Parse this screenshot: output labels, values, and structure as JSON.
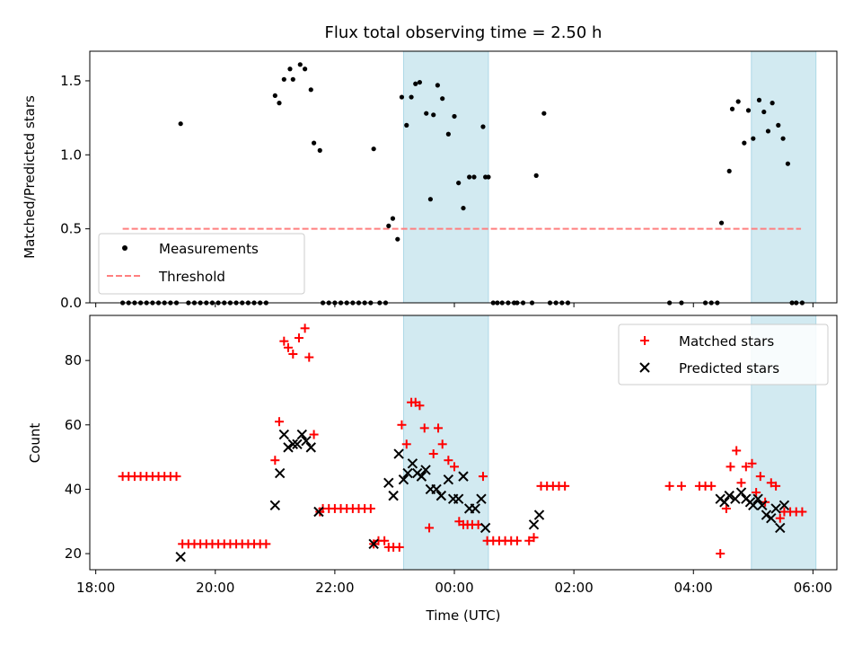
{
  "chart_data": [
    {
      "type": "scatter",
      "title": "Flux total observing time = 2.50 h",
      "ylabel": "Matched/Predicted stars",
      "xlabel": "",
      "x_unit": "hours UTC since 18:00 (day rollover at 24)",
      "xlim": [
        17.9,
        30.4
      ],
      "ylim": [
        0.0,
        1.7
      ],
      "x_ticks": [
        18,
        20,
        22,
        24,
        26,
        28,
        30
      ],
      "y_ticks": [
        0.0,
        0.5,
        1.0,
        1.5
      ],
      "y_tick_labels": [
        "0.0",
        "0.5",
        "1.0",
        "1.5"
      ],
      "threshold": 0.5,
      "threshold_range": [
        18.45,
        29.8
      ],
      "shaded_ranges": [
        [
          23.15,
          24.57
        ],
        [
          28.97,
          30.05
        ]
      ],
      "legend_position": "lower-left",
      "legend": [
        "Measurements",
        "Threshold"
      ],
      "series": [
        {
          "name": "Measurements",
          "points": [
            [
              18.45,
              0
            ],
            [
              18.55,
              0
            ],
            [
              18.65,
              0
            ],
            [
              18.75,
              0
            ],
            [
              18.85,
              0
            ],
            [
              18.95,
              0
            ],
            [
              19.05,
              0
            ],
            [
              19.15,
              0
            ],
            [
              19.25,
              0
            ],
            [
              19.35,
              0
            ],
            [
              19.42,
              1.21
            ],
            [
              19.55,
              0
            ],
            [
              19.65,
              0
            ],
            [
              19.75,
              0
            ],
            [
              19.85,
              0
            ],
            [
              19.95,
              0
            ],
            [
              20.05,
              0
            ],
            [
              20.15,
              0
            ],
            [
              20.25,
              0
            ],
            [
              20.35,
              0
            ],
            [
              20.45,
              0
            ],
            [
              20.55,
              0
            ],
            [
              20.65,
              0
            ],
            [
              20.75,
              0
            ],
            [
              20.85,
              0
            ],
            [
              21.0,
              1.4
            ],
            [
              21.07,
              1.35
            ],
            [
              21.15,
              1.51
            ],
            [
              21.25,
              1.58
            ],
            [
              21.3,
              1.51
            ],
            [
              21.42,
              1.61
            ],
            [
              21.5,
              1.58
            ],
            [
              21.6,
              1.44
            ],
            [
              21.65,
              1.08
            ],
            [
              21.75,
              1.03
            ],
            [
              21.8,
              0
            ],
            [
              21.9,
              0
            ],
            [
              22.0,
              0
            ],
            [
              22.1,
              0
            ],
            [
              22.2,
              0
            ],
            [
              22.3,
              0
            ],
            [
              22.4,
              0
            ],
            [
              22.5,
              0
            ],
            [
              22.6,
              0
            ],
            [
              22.65,
              1.04
            ],
            [
              22.75,
              0
            ],
            [
              22.85,
              0
            ],
            [
              22.9,
              0.52
            ],
            [
              22.97,
              0.57
            ],
            [
              23.05,
              0.43
            ],
            [
              23.12,
              1.39
            ],
            [
              23.2,
              1.2
            ],
            [
              23.28,
              1.39
            ],
            [
              23.35,
              1.48
            ],
            [
              23.42,
              1.49
            ],
            [
              23.53,
              1.28
            ],
            [
              23.6,
              0.7
            ],
            [
              23.65,
              1.27
            ],
            [
              23.72,
              1.47
            ],
            [
              23.8,
              1.38
            ],
            [
              23.9,
              1.14
            ],
            [
              24.0,
              1.26
            ],
            [
              24.07,
              0.81
            ],
            [
              24.15,
              0.64
            ],
            [
              24.25,
              0.85
            ],
            [
              24.33,
              0.85
            ],
            [
              24.48,
              1.19
            ],
            [
              24.52,
              0.85
            ],
            [
              24.57,
              0.85
            ],
            [
              24.65,
              0
            ],
            [
              24.72,
              0
            ],
            [
              24.8,
              0
            ],
            [
              24.9,
              0
            ],
            [
              25.0,
              0
            ],
            [
              25.05,
              0
            ],
            [
              25.15,
              0
            ],
            [
              25.3,
              0
            ],
            [
              25.37,
              0.86
            ],
            [
              25.5,
              1.28
            ],
            [
              25.6,
              0
            ],
            [
              25.7,
              0
            ],
            [
              25.8,
              0
            ],
            [
              25.9,
              0
            ],
            [
              27.6,
              0
            ],
            [
              27.8,
              0
            ],
            [
              28.2,
              0
            ],
            [
              28.3,
              0
            ],
            [
              28.4,
              0
            ],
            [
              28.47,
              0.54
            ],
            [
              28.6,
              0.89
            ],
            [
              28.65,
              1.31
            ],
            [
              28.75,
              1.36
            ],
            [
              28.85,
              1.08
            ],
            [
              28.92,
              1.3
            ],
            [
              29.0,
              1.11
            ],
            [
              29.1,
              1.37
            ],
            [
              29.18,
              1.29
            ],
            [
              29.25,
              1.16
            ],
            [
              29.32,
              1.35
            ],
            [
              29.42,
              1.2
            ],
            [
              29.5,
              1.11
            ],
            [
              29.58,
              0.94
            ],
            [
              29.65,
              0
            ],
            [
              29.72,
              0
            ],
            [
              29.82,
              0
            ]
          ]
        }
      ]
    },
    {
      "type": "scatter",
      "title": "",
      "ylabel": "Count",
      "xlabel": "Time (UTC)",
      "xlim": [
        17.9,
        30.4
      ],
      "ylim": [
        15,
        94
      ],
      "x_ticks": [
        18,
        20,
        22,
        24,
        26,
        28,
        30
      ],
      "x_tick_labels": [
        "18:00",
        "20:00",
        "22:00",
        "00:00",
        "02:00",
        "04:00",
        "06:00"
      ],
      "y_ticks": [
        20,
        40,
        60,
        80
      ],
      "y_tick_labels": [
        "20",
        "40",
        "60",
        "80"
      ],
      "shaded_ranges": [
        [
          23.15,
          24.57
        ],
        [
          28.97,
          30.05
        ]
      ],
      "legend_position": "top-right",
      "legend": [
        "Matched stars",
        "Predicted stars"
      ],
      "series": [
        {
          "name": "Matched stars",
          "points": [
            [
              18.45,
              44
            ],
            [
              18.55,
              44
            ],
            [
              18.65,
              44
            ],
            [
              18.75,
              44
            ],
            [
              18.85,
              44
            ],
            [
              18.95,
              44
            ],
            [
              19.05,
              44
            ],
            [
              19.15,
              44
            ],
            [
              19.25,
              44
            ],
            [
              19.35,
              44
            ],
            [
              19.45,
              23
            ],
            [
              19.55,
              23
            ],
            [
              19.65,
              23
            ],
            [
              19.75,
              23
            ],
            [
              19.85,
              23
            ],
            [
              19.95,
              23
            ],
            [
              20.05,
              23
            ],
            [
              20.15,
              23
            ],
            [
              20.25,
              23
            ],
            [
              20.35,
              23
            ],
            [
              20.45,
              23
            ],
            [
              20.55,
              23
            ],
            [
              20.65,
              23
            ],
            [
              20.75,
              23
            ],
            [
              20.85,
              23
            ],
            [
              21.0,
              49
            ],
            [
              21.07,
              61
            ],
            [
              21.15,
              86
            ],
            [
              21.22,
              84
            ],
            [
              21.3,
              82
            ],
            [
              21.4,
              87
            ],
            [
              21.5,
              90
            ],
            [
              21.57,
              81
            ],
            [
              21.65,
              57
            ],
            [
              21.75,
              33
            ],
            [
              21.8,
              34
            ],
            [
              21.9,
              34
            ],
            [
              22.0,
              34
            ],
            [
              22.1,
              34
            ],
            [
              22.2,
              34
            ],
            [
              22.3,
              34
            ],
            [
              22.4,
              34
            ],
            [
              22.5,
              34
            ],
            [
              22.6,
              34
            ],
            [
              22.65,
              23
            ],
            [
              22.73,
              24
            ],
            [
              22.83,
              24
            ],
            [
              22.9,
              22
            ],
            [
              22.98,
              22
            ],
            [
              23.08,
              22
            ],
            [
              23.12,
              60
            ],
            [
              23.2,
              54
            ],
            [
              23.28,
              67
            ],
            [
              23.35,
              67
            ],
            [
              23.42,
              66
            ],
            [
              23.5,
              59
            ],
            [
              23.58,
              28
            ],
            [
              23.65,
              51
            ],
            [
              23.73,
              59
            ],
            [
              23.8,
              54
            ],
            [
              23.9,
              49
            ],
            [
              24.0,
              47
            ],
            [
              24.08,
              30
            ],
            [
              24.15,
              29
            ],
            [
              24.22,
              29
            ],
            [
              24.3,
              29
            ],
            [
              24.4,
              29
            ],
            [
              24.48,
              44
            ],
            [
              24.55,
              24
            ],
            [
              24.65,
              24
            ],
            [
              24.75,
              24
            ],
            [
              24.85,
              24
            ],
            [
              24.95,
              24
            ],
            [
              25.05,
              24
            ],
            [
              25.25,
              24
            ],
            [
              25.33,
              25
            ],
            [
              25.45,
              41
            ],
            [
              25.55,
              41
            ],
            [
              25.65,
              41
            ],
            [
              25.75,
              41
            ],
            [
              25.85,
              41
            ],
            [
              27.6,
              41
            ],
            [
              27.8,
              41
            ],
            [
              28.1,
              41
            ],
            [
              28.2,
              41
            ],
            [
              28.3,
              41
            ],
            [
              28.45,
              20
            ],
            [
              28.55,
              34
            ],
            [
              28.62,
              47
            ],
            [
              28.72,
              52
            ],
            [
              28.8,
              42
            ],
            [
              28.88,
              47
            ],
            [
              28.98,
              48
            ],
            [
              29.05,
              39
            ],
            [
              29.12,
              44
            ],
            [
              29.2,
              36
            ],
            [
              29.3,
              42
            ],
            [
              29.38,
              41
            ],
            [
              29.45,
              31
            ],
            [
              29.52,
              33
            ],
            [
              29.62,
              33
            ],
            [
              29.72,
              33
            ],
            [
              29.82,
              33
            ]
          ]
        },
        {
          "name": "Predicted stars",
          "points": [
            [
              19.42,
              19
            ],
            [
              21.0,
              35
            ],
            [
              21.08,
              45
            ],
            [
              21.15,
              57
            ],
            [
              21.22,
              53
            ],
            [
              21.3,
              54
            ],
            [
              21.37,
              54
            ],
            [
              21.45,
              57
            ],
            [
              21.52,
              55
            ],
            [
              21.6,
              53
            ],
            [
              21.73,
              33
            ],
            [
              22.65,
              23
            ],
            [
              22.9,
              42
            ],
            [
              22.98,
              38
            ],
            [
              23.07,
              51
            ],
            [
              23.15,
              43
            ],
            [
              23.22,
              45
            ],
            [
              23.3,
              48
            ],
            [
              23.38,
              45
            ],
            [
              23.45,
              44
            ],
            [
              23.52,
              46
            ],
            [
              23.6,
              40
            ],
            [
              23.7,
              40
            ],
            [
              23.78,
              38
            ],
            [
              23.9,
              43
            ],
            [
              23.98,
              37
            ],
            [
              24.07,
              37
            ],
            [
              24.15,
              44
            ],
            [
              24.25,
              34
            ],
            [
              24.35,
              34
            ],
            [
              24.45,
              37
            ],
            [
              24.52,
              28
            ],
            [
              25.33,
              29
            ],
            [
              25.42,
              32
            ],
            [
              28.45,
              37
            ],
            [
              28.52,
              36
            ],
            [
              28.6,
              38
            ],
            [
              28.7,
              37
            ],
            [
              28.8,
              39
            ],
            [
              28.88,
              37
            ],
            [
              28.95,
              36
            ],
            [
              29.0,
              35
            ],
            [
              29.08,
              37
            ],
            [
              29.15,
              35
            ],
            [
              29.22,
              32
            ],
            [
              29.3,
              31
            ],
            [
              29.38,
              34
            ],
            [
              29.45,
              28
            ],
            [
              29.52,
              35
            ]
          ]
        }
      ]
    }
  ],
  "colors": {
    "measurements": "#000000",
    "threshold": "#ff7f7f",
    "shade": "#add8e6",
    "matched": "#ff0000",
    "predicted": "#000000"
  }
}
